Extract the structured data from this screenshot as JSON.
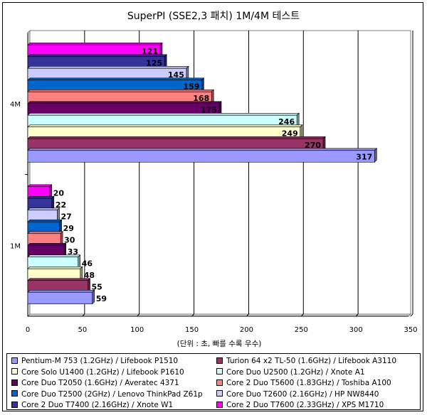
{
  "chart_data": {
    "type": "bar",
    "orientation": "horizontal",
    "title": "SuperPI (SSE2,3 패치) 1M/4M 테스트",
    "xlabel": "(단위 : 초, 빠를 수록 우수)",
    "ylabel": "",
    "xlim": [
      0,
      350
    ],
    "x_ticks": [
      0,
      50,
      100,
      150,
      200,
      250,
      300,
      350
    ],
    "categories": [
      "4M",
      "1M"
    ],
    "grid": true,
    "legend_position": "bottom",
    "series": [
      {
        "name": "Pentium-M 753 (1.2GHz) / Lifebook P1510",
        "color": "#9999ff",
        "values": [
          317,
          59
        ]
      },
      {
        "name": "Turion 64 x2 TL-50 (1.6GHz) / Lifebook A3110",
        "color": "#993366",
        "values": [
          270,
          55
        ]
      },
      {
        "name": "Core Solo U1400 (1.2GHz) / Lifebook P1610",
        "color": "#ffffcc",
        "values": [
          249,
          48
        ]
      },
      {
        "name": "Core Duo U2500 (1.2GHz) / Xnote A1",
        "color": "#ccffff",
        "values": [
          246,
          46
        ]
      },
      {
        "name": "Core Duo T2050 (1.6GHz) / Averatec 4371",
        "color": "#660066",
        "values": [
          175,
          33
        ]
      },
      {
        "name": "Core 2 Duo T5600 (1.83GHz) / Toshiba A100",
        "color": "#ff8080",
        "values": [
          168,
          30
        ]
      },
      {
        "name": "Core Duo T2500 (2GHz) / Lenovo ThinkPad Z61p",
        "color": "#0066cc",
        "values": [
          159,
          29
        ]
      },
      {
        "name": "Core Duo T2600 (2.16GHz) / HP NW8440",
        "color": "#ccccff",
        "values": [
          145,
          27
        ]
      },
      {
        "name": "Core 2 Duo T7400 (2.16GHz) / Xnote W1",
        "color": "#333399",
        "values": [
          125,
          22
        ]
      },
      {
        "name": "Core 2 Duo T7600 (2.33GHz) / XPS M1710",
        "color": "#ff00ff",
        "values": [
          121,
          20
        ]
      }
    ]
  }
}
